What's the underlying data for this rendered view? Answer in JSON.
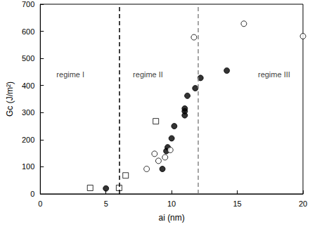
{
  "chart_data": {
    "type": "scatter",
    "x_label": "ai (nm)",
    "y_label": "Gc (J/m²)",
    "xlim": [
      0,
      20
    ],
    "xticks": [
      0,
      5,
      10,
      15,
      20
    ],
    "ylim": [
      0,
      700
    ],
    "yticks": [
      0,
      100,
      200,
      300,
      400,
      500,
      600,
      700
    ],
    "grid": false,
    "series": [
      {
        "marker": "open_square",
        "color": "#000000",
        "x": [
          3.8,
          6.0,
          6.5,
          8.8
        ],
        "values": [
          22,
          22,
          68,
          268
        ]
      },
      {
        "marker": "filled_circle",
        "color": "#000000",
        "x": [
          5.0,
          9.3,
          9.6,
          9.7,
          10.0,
          10.2,
          11.0,
          11.0,
          11.0,
          11.2,
          11.8,
          12.2,
          14.2
        ],
        "values": [
          20,
          92,
          158,
          172,
          205,
          250,
          290,
          305,
          315,
          362,
          390,
          428,
          455
        ]
      },
      {
        "marker": "open_circle",
        "color": "#000000",
        "x": [
          8.1,
          8.7,
          9.0,
          9.5,
          9.9,
          11.7,
          15.5,
          20.0
        ],
        "values": [
          92,
          148,
          122,
          135,
          162,
          578,
          628,
          582
        ]
      }
    ],
    "boundaries": [
      {
        "x": 6,
        "color": "#000000",
        "line_style": "dashed"
      },
      {
        "x": 12,
        "color": "#888888",
        "line_style": "dashed"
      }
    ],
    "annotations": [
      {
        "text": "regime I",
        "x": 2.3,
        "y": 440
      },
      {
        "text": "regime II",
        "x": 8.2,
        "y": 440
      },
      {
        "text": "regime III",
        "x": 17.8,
        "y": 440
      }
    ]
  }
}
